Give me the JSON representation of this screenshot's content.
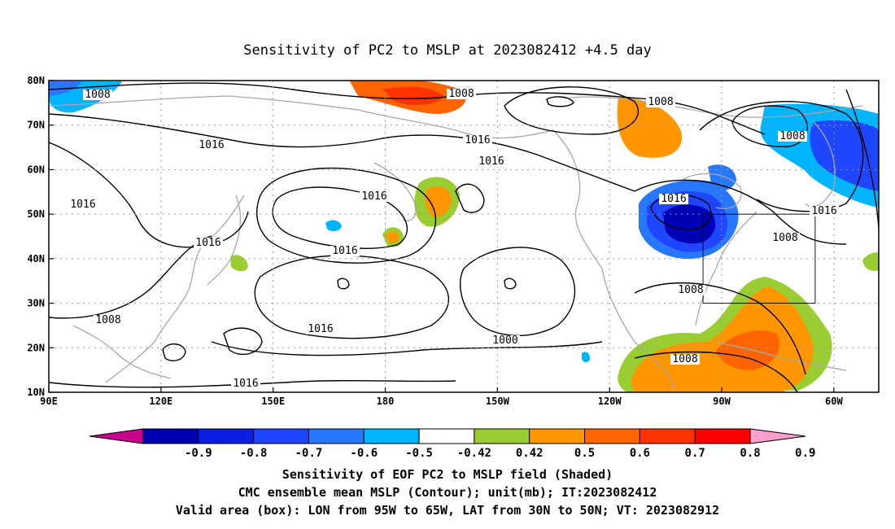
{
  "title": "Sensitivity of PC2 to MSLP at 2023082412 +4.5 day",
  "axes": {
    "lon_labels": [
      "90E",
      "120E",
      "150E",
      "180",
      "150W",
      "120W",
      "90W",
      "60W"
    ],
    "lat_labels": [
      "80N",
      "70N",
      "60N",
      "50N",
      "40N",
      "30N",
      "20N",
      "10N"
    ],
    "lon_range": [
      90,
      312
    ],
    "lat_range": [
      10,
      80
    ],
    "grid": "dotted"
  },
  "contour_labels": [
    "1008",
    "1008",
    "1016",
    "1016",
    "1016",
    "1016",
    "1008",
    "1016",
    "1016",
    "1016",
    "1016",
    "1008",
    "1016",
    "1008",
    "1008",
    "1016",
    "1000",
    "1008",
    "1016",
    "1008"
  ],
  "valid_box": {
    "lon_min": 265,
    "lon_max": 295,
    "lat_min": 30,
    "lat_max": 50
  },
  "colorbar": {
    "ticks": [
      "-0.9",
      "-0.8",
      "-0.7",
      "-0.6",
      "-0.5",
      "-0.42",
      "0.42",
      "0.5",
      "0.6",
      "0.7",
      "0.8",
      "0.9"
    ],
    "colors": [
      "#c8008c",
      "#0000b4",
      "#0a1ee6",
      "#1e46ff",
      "#2878ff",
      "#00b4ff",
      "#ffffff",
      "#9acd32",
      "#ff9600",
      "#ff6400",
      "#ff3200",
      "#ff0000",
      "#ff9fce"
    ]
  },
  "captions": [
    "Sensitivity of EOF PC2 to MSLP field (Shaded)",
    "CMC ensemble mean MSLP (Contour); unit(mb); IT:2023082412",
    "Valid area (box): LON from 95W to 65W, LAT from 30N to 50N; VT: 2023082912"
  ]
}
